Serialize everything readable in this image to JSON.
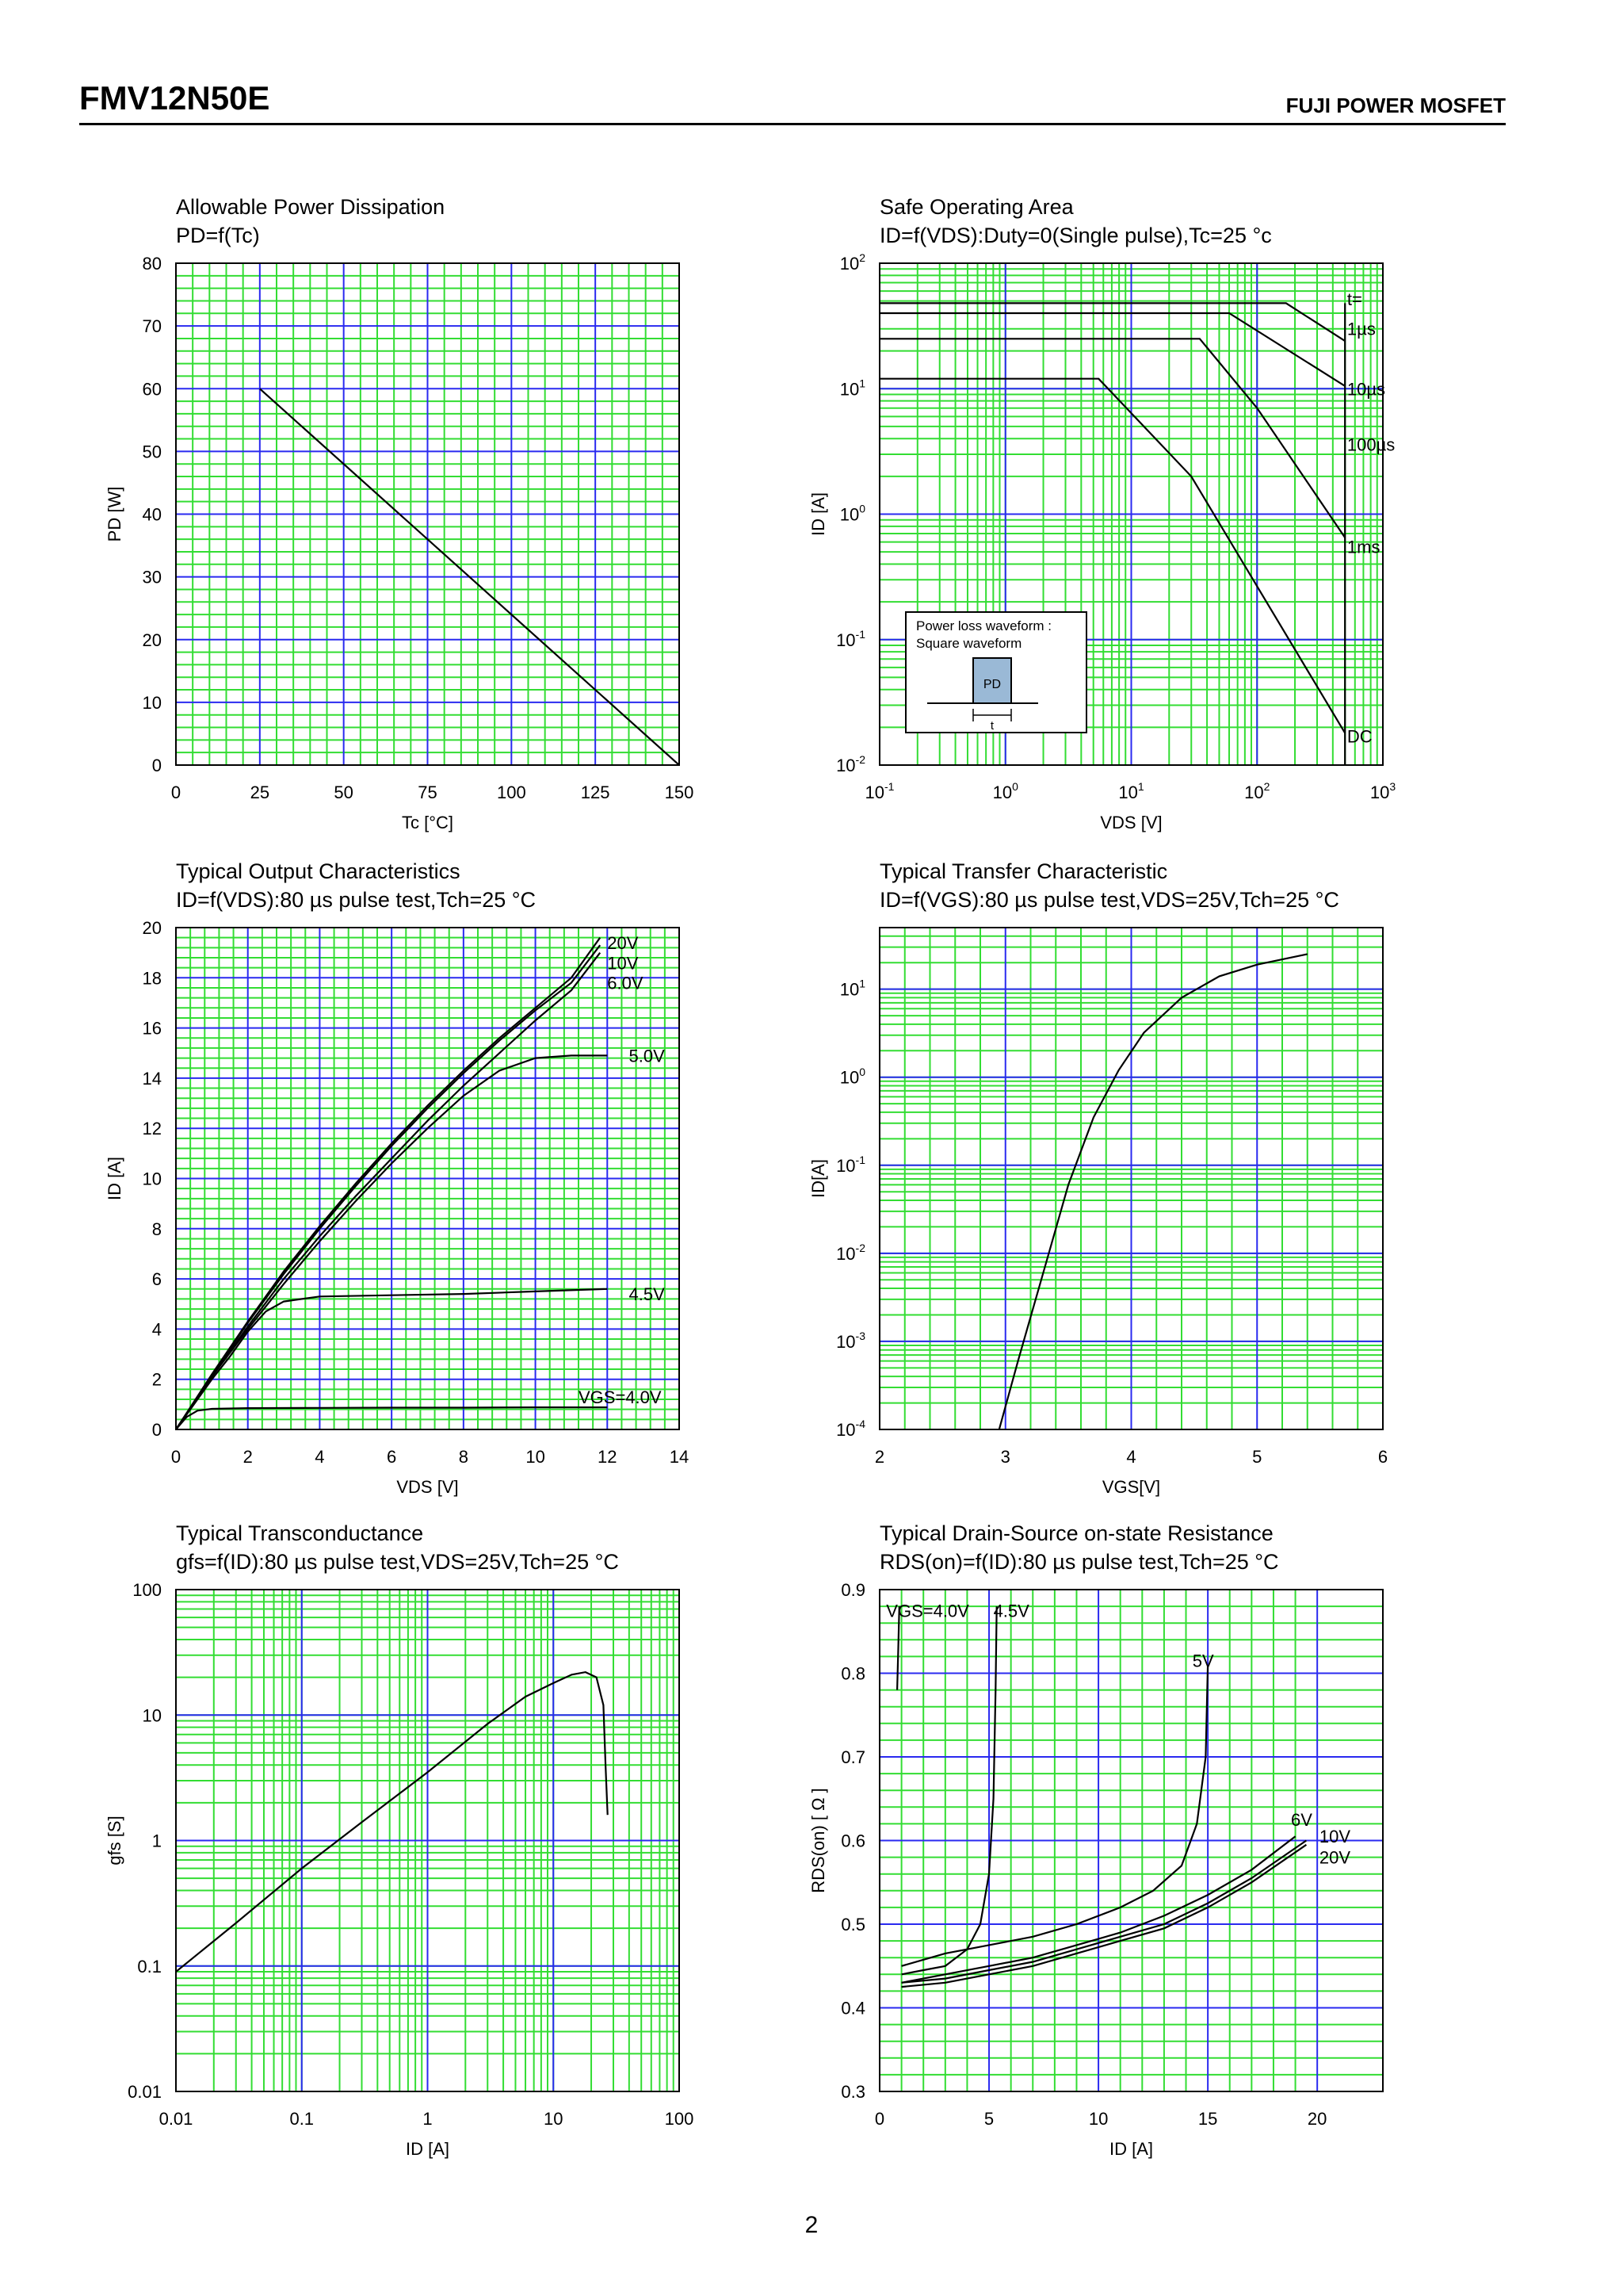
{
  "header": {
    "part_number": "FMV12N50E",
    "brand": "FUJI POWER MOSFET"
  },
  "footer": {
    "page_number": "2"
  },
  "colors": {
    "grid_minor": "#33dd33",
    "grid_major": "#2a2af0",
    "curve": "#000000",
    "background": "#ffffff"
  },
  "chart_data": [
    {
      "id": "pd",
      "type": "line",
      "title": "Allowable Power Dissipation",
      "subtitle": "PD=f(Tc)",
      "xlabel": "Tc [°C]",
      "ylabel": "PD [W]",
      "x_scale": "linear",
      "y_scale": "linear",
      "xlim": [
        0,
        150
      ],
      "ylim": [
        0,
        80
      ],
      "xticks": [
        0,
        25,
        50,
        75,
        100,
        125,
        150
      ],
      "xtick_labels": [
        "0",
        "25",
        "50",
        "75",
        "100",
        "125",
        "150"
      ],
      "yticks": [
        0,
        10,
        20,
        30,
        40,
        50,
        60,
        70,
        80
      ],
      "ytick_labels": [
        "0",
        "10",
        "20",
        "30",
        "40",
        "50",
        "60",
        "70",
        "80"
      ],
      "grid": true,
      "series": [
        {
          "x": [
            25,
            150
          ],
          "y": [
            60,
            0
          ]
        }
      ]
    },
    {
      "id": "soa",
      "type": "line",
      "title": "Safe Operating Area",
      "subtitle": "ID=f(VDS):Duty=0(Single pulse),Tc=25 °c",
      "xlabel": "VDS [V]",
      "ylabel": "ID [A]",
      "x_scale": "log",
      "y_scale": "log",
      "xlim": [
        0.1,
        1000
      ],
      "ylim": [
        0.01,
        100
      ],
      "xticks": [
        0.1,
        1,
        10,
        100,
        1000
      ],
      "xtick_labels": [
        "10",
        "10",
        "10",
        "10",
        "10"
      ],
      "xtick_exponents": [
        "-1",
        "0",
        "1",
        "2",
        "3"
      ],
      "yticks": [
        0.01,
        0.1,
        1,
        10,
        100
      ],
      "ytick_labels": [
        "10",
        "10",
        "10",
        "10",
        "10"
      ],
      "ytick_exponents": [
        "-2",
        "-1",
        "0",
        "1",
        "2"
      ],
      "grid": true,
      "series": [
        {
          "name": "1µs",
          "x": [
            0.1,
            170,
            500
          ],
          "y": [
            48,
            48,
            24
          ]
        },
        {
          "name": "10µs",
          "x": [
            0.1,
            60,
            500
          ],
          "y": [
            40,
            40,
            10.5
          ]
        },
        {
          "name": "100µs",
          "x": [
            0.1,
            35,
            100,
            500
          ],
          "y": [
            25,
            25,
            7,
            0.65
          ]
        },
        {
          "name": "1ms",
          "x": [
            0.1,
            5.5,
            30,
            500
          ],
          "y": [
            12,
            12,
            2,
            0.018
          ]
        },
        {
          "name": "DC",
          "x": [
            500,
            500
          ],
          "y": [
            0.01,
            48
          ]
        }
      ],
      "annotations": [
        {
          "text": "t=",
          "x": 520,
          "y": 52
        },
        {
          "text": "1µs",
          "x": 520,
          "y": 30
        },
        {
          "text": "10µs",
          "x": 520,
          "y": 10
        },
        {
          "text": "100µs",
          "x": 520,
          "y": 3.6
        },
        {
          "text": "1ms",
          "x": 520,
          "y": 0.55
        },
        {
          "text": "DC",
          "x": 520,
          "y": 0.017
        }
      ],
      "inset": {
        "line1": "Power loss waveform :",
        "line2": "Square waveform",
        "pulse_label": "PD",
        "width_label": "t"
      }
    },
    {
      "id": "output",
      "type": "line",
      "title": "Typical Output Characteristics",
      "subtitle": "ID=f(VDS):80 µs pulse test,Tch=25 °C",
      "xlabel": "VDS [V]",
      "ylabel": "ID [A]",
      "x_scale": "linear",
      "y_scale": "linear",
      "xlim": [
        0,
        14
      ],
      "ylim": [
        0,
        20
      ],
      "xticks": [
        0,
        2,
        4,
        6,
        8,
        10,
        12,
        14
      ],
      "xtick_labels": [
        "0",
        "2",
        "4",
        "6",
        "8",
        "10",
        "12",
        "14"
      ],
      "yticks": [
        0,
        2,
        4,
        6,
        8,
        10,
        12,
        14,
        16,
        18,
        20
      ],
      "ytick_labels": [
        "0",
        "2",
        "4",
        "6",
        "8",
        "10",
        "12",
        "14",
        "16",
        "18",
        "20"
      ],
      "grid": true,
      "series": [
        {
          "name": "20V",
          "x": [
            0,
            1,
            2,
            3,
            4,
            5,
            6,
            7,
            8,
            9,
            10,
            11,
            11.8
          ],
          "y": [
            0,
            2.2,
            4.3,
            6.3,
            8.1,
            9.8,
            11.4,
            12.9,
            14.3,
            15.6,
            16.8,
            18.0,
            19.6
          ]
        },
        {
          "name": "10V",
          "x": [
            0,
            1,
            2,
            3,
            4,
            5,
            6,
            7,
            8,
            9,
            10,
            11,
            11.8
          ],
          "y": [
            0,
            2.15,
            4.25,
            6.2,
            8.0,
            9.7,
            11.3,
            12.8,
            14.2,
            15.5,
            16.7,
            17.8,
            19.3
          ]
        },
        {
          "name": "6.0V",
          "x": [
            0,
            1,
            2,
            3,
            4,
            5,
            6,
            7,
            8,
            9,
            10,
            11,
            11.8
          ],
          "y": [
            0,
            2.1,
            4.1,
            6.0,
            7.7,
            9.3,
            10.8,
            12.3,
            13.7,
            15.0,
            16.3,
            17.5,
            19.0
          ]
        },
        {
          "name": "5.0V",
          "x": [
            0,
            1,
            2,
            3,
            4,
            5,
            6,
            7,
            8,
            9,
            10,
            11,
            12
          ],
          "y": [
            0,
            2.1,
            4.0,
            5.8,
            7.5,
            9.1,
            10.6,
            12.0,
            13.3,
            14.3,
            14.8,
            14.9,
            14.9
          ]
        },
        {
          "name": "4.5V",
          "x": [
            0,
            1,
            1.5,
            2,
            2.5,
            3,
            4,
            6,
            8,
            10,
            12
          ],
          "y": [
            0,
            2.0,
            2.9,
            3.9,
            4.7,
            5.1,
            5.3,
            5.35,
            5.4,
            5.5,
            5.6
          ]
        },
        {
          "name": "VGS=4.0V",
          "x": [
            0,
            0.3,
            0.6,
            1,
            2,
            4,
            6,
            8,
            10,
            12
          ],
          "y": [
            0,
            0.5,
            0.75,
            0.82,
            0.85,
            0.86,
            0.87,
            0.87,
            0.88,
            0.88
          ]
        }
      ],
      "annotations": [
        {
          "text": "20V",
          "x": 12.0,
          "y": 19.4
        },
        {
          "text": "10V",
          "x": 12.0,
          "y": 18.6
        },
        {
          "text": "6.0V",
          "x": 12.0,
          "y": 17.8
        },
        {
          "text": "5.0V",
          "x": 12.6,
          "y": 14.9
        },
        {
          "text": "4.5V",
          "x": 12.6,
          "y": 5.4
        },
        {
          "text": "VGS=4.0V",
          "x": 11.2,
          "y": 1.3
        }
      ]
    },
    {
      "id": "transfer",
      "type": "line",
      "title": "Typical Transfer Characteristic",
      "subtitle": "ID=f(VGS):80 µs pulse test,VDS=25V,Tch=25 °C",
      "xlabel": "VGS[V]",
      "ylabel": "ID[A]",
      "x_scale": "linear",
      "y_scale": "log",
      "xlim": [
        2,
        6
      ],
      "ylim": [
        0.0001,
        50
      ],
      "xticks": [
        2,
        3,
        4,
        5,
        6
      ],
      "xtick_labels": [
        "2",
        "3",
        "4",
        "5",
        "6"
      ],
      "yticks": [
        0.0001,
        0.001,
        0.01,
        0.1,
        1,
        10
      ],
      "ytick_labels": [
        "10",
        "10",
        "10",
        "10",
        "10",
        "10"
      ],
      "ytick_exponents": [
        "-4",
        "-3",
        "-2",
        "-1",
        "0",
        "1"
      ],
      "grid": true,
      "series": [
        {
          "x": [
            2.95,
            3.1,
            3.3,
            3.5,
            3.7,
            3.9,
            4.1,
            4.4,
            4.7,
            5.0,
            5.4
          ],
          "y": [
            0.0001,
            0.0006,
            0.006,
            0.06,
            0.35,
            1.2,
            3.2,
            8,
            14,
            19,
            25
          ]
        }
      ]
    },
    {
      "id": "gfs",
      "type": "line",
      "title": "Typical Transconductance",
      "subtitle": "gfs=f(ID):80 µs pulse test,VDS=25V,Tch=25 °C",
      "xlabel": "ID [A]",
      "ylabel": "gfs [S]",
      "x_scale": "log",
      "y_scale": "log",
      "xlim": [
        0.01,
        100
      ],
      "ylim": [
        0.01,
        100
      ],
      "xticks": [
        0.01,
        0.1,
        1,
        10,
        100
      ],
      "xtick_labels": [
        "0.01",
        "0.1",
        "1",
        "10",
        "100"
      ],
      "yticks": [
        0.01,
        0.1,
        1,
        10,
        100
      ],
      "ytick_labels": [
        "0.01",
        "0.1",
        "1",
        "10",
        "100"
      ],
      "grid": true,
      "series": [
        {
          "x": [
            0.01,
            0.03,
            0.1,
            0.3,
            1,
            3,
            6,
            10,
            14,
            18,
            22,
            25,
            26,
            27
          ],
          "y": [
            0.09,
            0.22,
            0.6,
            1.4,
            3.5,
            8.5,
            14,
            18,
            21,
            22,
            20,
            12,
            4,
            1.6
          ]
        }
      ]
    },
    {
      "id": "rdson",
      "type": "line",
      "title": "Typical Drain-Source on-state Resistance",
      "subtitle": "RDS(on)=f(ID):80  µs pulse test,Tch=25 °C",
      "xlabel": "ID [A]",
      "ylabel": "RDS(on) [ Ω ]",
      "x_scale": "linear",
      "y_scale": "linear",
      "xlim": [
        0,
        23
      ],
      "ylim": [
        0.3,
        0.9
      ],
      "xticks": [
        0,
        5,
        10,
        15,
        20
      ],
      "xtick_labels": [
        "0",
        "5",
        "10",
        "15",
        "20"
      ],
      "yticks": [
        0.3,
        0.4,
        0.5,
        0.6,
        0.7,
        0.8,
        0.9
      ],
      "ytick_labels": [
        "0.3",
        "0.4",
        "0.5",
        "0.6",
        "0.7",
        "0.8",
        "0.9"
      ],
      "grid": true,
      "series": [
        {
          "name": "VGS=4.0V",
          "x": [
            0.8,
            0.85,
            0.9
          ],
          "y": [
            0.78,
            0.83,
            0.88
          ]
        },
        {
          "name": "4.5V",
          "x": [
            1,
            2,
            3,
            4,
            4.6,
            5.0,
            5.2,
            5.3,
            5.35
          ],
          "y": [
            0.44,
            0.445,
            0.45,
            0.47,
            0.5,
            0.56,
            0.65,
            0.78,
            0.88
          ]
        },
        {
          "name": "5V",
          "x": [
            1,
            3,
            5,
            7,
            9,
            11,
            12.5,
            13.8,
            14.5,
            14.9,
            15.0
          ],
          "y": [
            0.45,
            0.465,
            0.475,
            0.485,
            0.5,
            0.52,
            0.54,
            0.57,
            0.62,
            0.7,
            0.81
          ]
        },
        {
          "name": "6V",
          "x": [
            1,
            3,
            5,
            7,
            9,
            11,
            13,
            15,
            17,
            19
          ],
          "y": [
            0.43,
            0.44,
            0.45,
            0.46,
            0.475,
            0.49,
            0.51,
            0.535,
            0.565,
            0.605
          ]
        },
        {
          "name": "10V",
          "x": [
            1,
            3,
            5,
            7,
            9,
            11,
            13,
            15,
            17,
            19.5
          ],
          "y": [
            0.43,
            0.435,
            0.445,
            0.455,
            0.47,
            0.485,
            0.5,
            0.525,
            0.555,
            0.6
          ]
        },
        {
          "name": "20V",
          "x": [
            1,
            3,
            5,
            7,
            9,
            11,
            13,
            15,
            17,
            19.5
          ],
          "y": [
            0.425,
            0.43,
            0.44,
            0.45,
            0.465,
            0.48,
            0.495,
            0.52,
            0.55,
            0.595
          ]
        }
      ],
      "annotations": [
        {
          "text": "VGS=4.0V",
          "x": 0.3,
          "y": 0.875
        },
        {
          "text": "4.5V",
          "x": 5.2,
          "y": 0.875
        },
        {
          "text": "5V",
          "x": 14.3,
          "y": 0.815
        },
        {
          "text": "6V",
          "x": 18.8,
          "y": 0.625
        },
        {
          "text": "10V",
          "x": 20.1,
          "y": 0.605
        },
        {
          "text": "20V",
          "x": 20.1,
          "y": 0.58
        }
      ]
    }
  ]
}
